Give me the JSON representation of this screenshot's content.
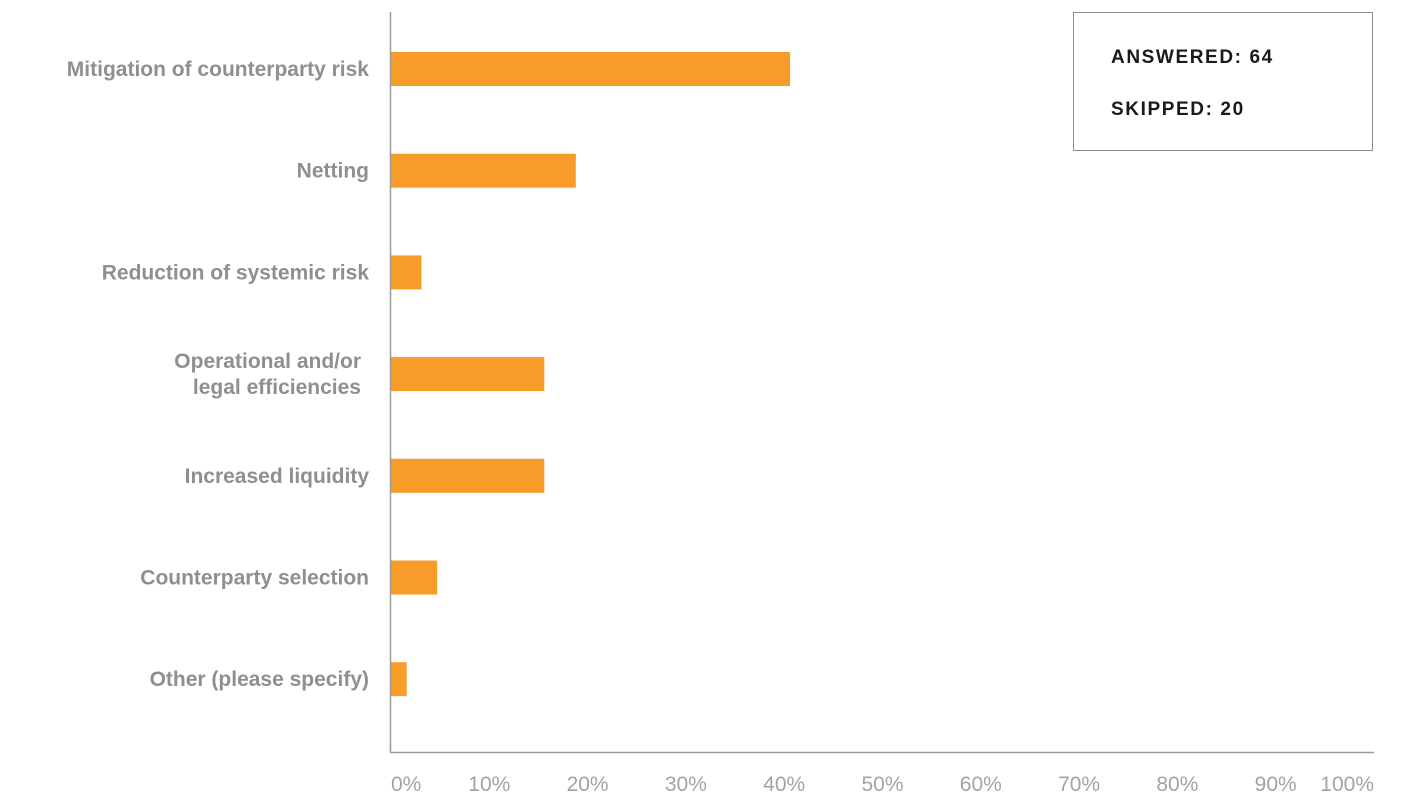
{
  "chart_data": {
    "type": "bar",
    "orientation": "horizontal",
    "categories": [
      [
        "Mitigation of counterparty risk"
      ],
      [
        "Netting"
      ],
      [
        "Reduction of systemic risk"
      ],
      [
        "Operational and/or",
        "legal efficiencies"
      ],
      [
        "Increased liquidity"
      ],
      [
        "Counterparty selection"
      ],
      [
        "Other (please specify)"
      ]
    ],
    "values": [
      40.6,
      18.8,
      3.1,
      15.6,
      15.6,
      4.7,
      1.6
    ],
    "xlim": [
      0,
      100
    ],
    "xticks": [
      "0%",
      "10%",
      "20%",
      "30%",
      "40%",
      "50%",
      "60%",
      "70%",
      "80%",
      "90%",
      "100%"
    ],
    "bar_color": "#f79c29",
    "grid": false
  },
  "stats": {
    "answered": "ANSWERED: 64",
    "skipped": "SKIPPED: 20"
  }
}
